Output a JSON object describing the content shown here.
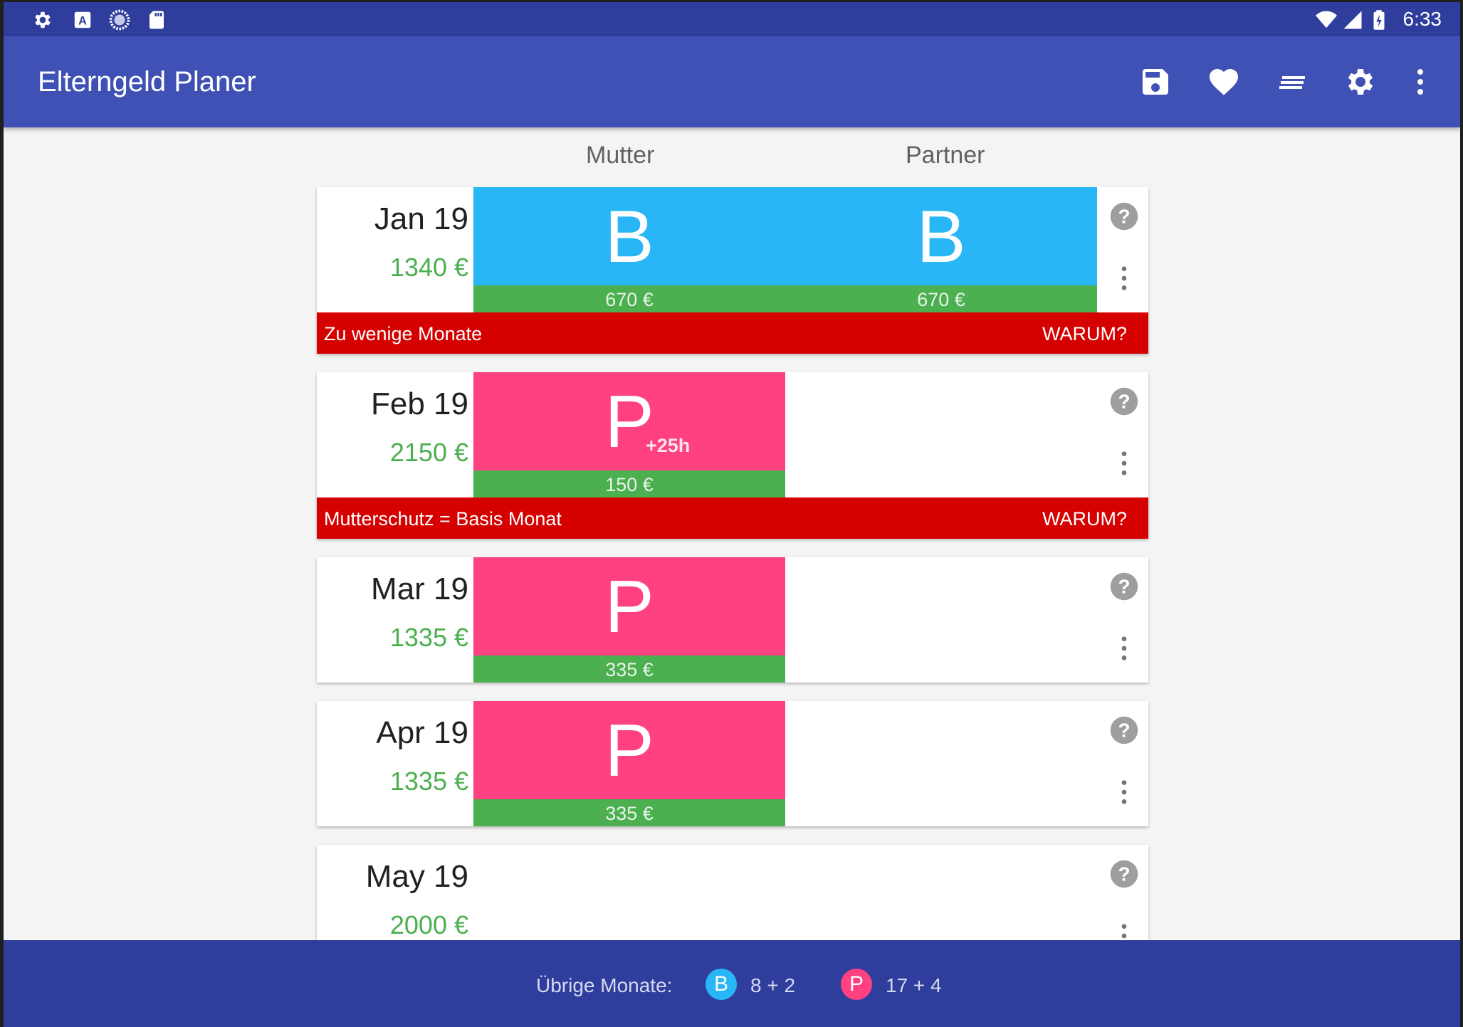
{
  "status_bar": {
    "time": "6:33",
    "left_icons": [
      "settings-gear-icon",
      "a-letter-icon",
      "loading-circle-icon",
      "sd-card-icon"
    ],
    "right_icons": [
      "wifi-icon",
      "signal-icon",
      "battery-charging-icon"
    ]
  },
  "toolbar": {
    "title": "Elterngeld Planer",
    "actions": [
      "save-icon",
      "heart-icon",
      "sort-icon",
      "settings-icon",
      "more-vert-icon"
    ]
  },
  "columns": {
    "mother": "Mutter",
    "partner": "Partner"
  },
  "colors": {
    "basis": "#29b6f6",
    "plus": "#ff4081",
    "amount_bar": "#4caf50",
    "warning": "#d50000",
    "app_bar": "#3f51b5"
  },
  "months": [
    {
      "label": "Jan 19",
      "total": "1340 €",
      "mother": {
        "letter": "B",
        "extra": "",
        "amount": "670 €"
      },
      "partner": {
        "letter": "B",
        "extra": "",
        "amount": "670 €"
      },
      "warning": {
        "text": "Zu wenige Monate",
        "action": "WARUM?"
      }
    },
    {
      "label": "Feb 19",
      "total": "2150 €",
      "mother": {
        "letter": "P",
        "extra": "+25h",
        "amount": "150 €"
      },
      "warning": {
        "text": "Mutterschutz = Basis Monat",
        "action": "WARUM?"
      }
    },
    {
      "label": "Mar 19",
      "total": "1335 €",
      "mother": {
        "letter": "P",
        "extra": "",
        "amount": "335 €"
      }
    },
    {
      "label": "Apr 19",
      "total": "1335 €",
      "mother": {
        "letter": "P",
        "extra": "",
        "amount": "335 €"
      }
    },
    {
      "label": "May 19",
      "total": "2000 €"
    }
  ],
  "bottom_bar": {
    "label": "Übrige Monate:",
    "basis_badge": "B",
    "basis_count": "8 + 2",
    "plus_badge": "P",
    "plus_count": "17 + 4"
  }
}
